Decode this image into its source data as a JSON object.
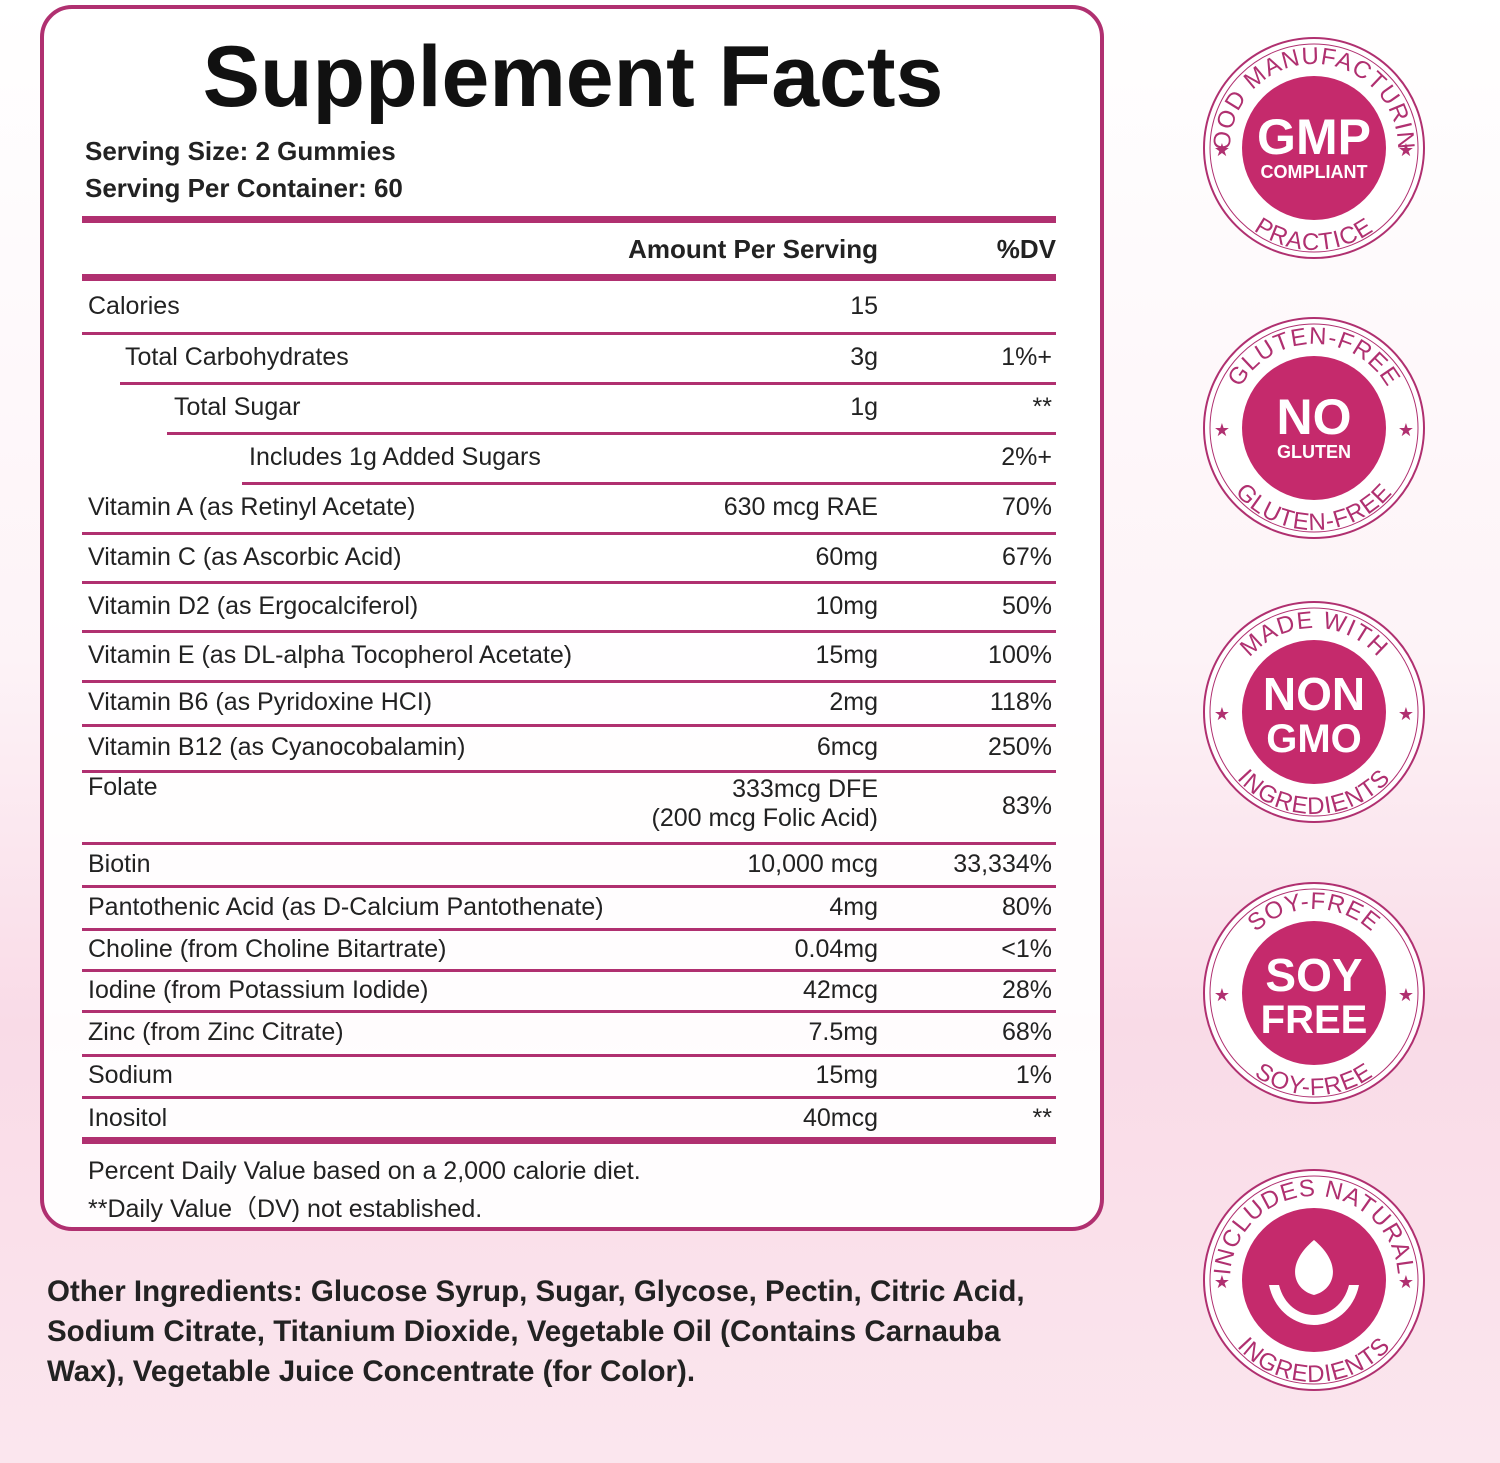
{
  "title": "Supplement Facts",
  "serving": [
    "Serving Size: 2 Gummies",
    "Serving Per Container: 60"
  ],
  "table": {
    "header": [
      "Amount Per Serving",
      "%DV"
    ],
    "rows": [
      [
        "Calories",
        "15",
        null
      ],
      [
        "Total Carbohydrates",
        "3g",
        "1%+"
      ],
      [
        "Total Sugar",
        "1g",
        "**"
      ],
      [
        "Includes 1g Added Sugars",
        null,
        "2%+"
      ],
      [
        "Vitamin A (as Retinyl Acetate)",
        "630 mcg RAE",
        "70%"
      ],
      [
        "Vitamin C (as Ascorbic Acid)",
        "60mg",
        "67%"
      ],
      [
        "Vitamin D2 (as Ergocalciferol)",
        "10mg",
        "50%"
      ],
      [
        "Vitamin E (as DL-alpha Tocopherol Acetate)",
        "15mg",
        "100%"
      ],
      [
        "Vitamin B6 (as Pyridoxine HCI)",
        "2mg",
        "118%"
      ],
      [
        "Vitamin B12 (as Cyanocobalamin)",
        "6mcg",
        "250%"
      ],
      [
        "Folate",
        [
          "333mcg DFE",
          "(200 mcg Folic Acid)"
        ],
        "83%"
      ],
      [
        "Biotin",
        "10,000 mcg",
        "33,334%"
      ],
      [
        "Pantothenic Acid (as D-Calcium Pantothenate)",
        "4mg",
        "80%"
      ],
      [
        "Choline (from Choline Bitartrate)",
        "0.04mg",
        "<1%"
      ],
      [
        "Iodine (from Potassium Iodide)",
        "42mcg",
        "28%"
      ],
      [
        "Zinc (from Zinc Citrate)",
        "7.5mg",
        "68%"
      ],
      [
        "Sodium",
        "15mg",
        "1%"
      ],
      [
        "Inositol",
        "40mcg",
        "**"
      ]
    ]
  },
  "footnotes": [
    "Percent Daily Value based on a 2,000 calorie diet.",
    "**Daily Value（DV) not established."
  ],
  "other_ingredients": "Other Ingredients: Glucose Syrup, Sugar, Glycose, Pectin, Citric Acid, Sodium Citrate, Titanium Dioxide, Vegetable Oil (Contains Carnauba Wax), Vegetable Juice Concentrate (for Color).",
  "badges": [
    {
      "top": "GOOD MANUFACTURING",
      "center": [
        "GMP",
        "COMPLIANT"
      ],
      "bottom": "PRACTICE"
    },
    {
      "top": "GLUTEN-FREE",
      "center": [
        "NO",
        "GLUTEN"
      ],
      "bottom": "GLUTEN-FREE"
    },
    {
      "top": "MADE WITH",
      "center": [
        "NON",
        "GMO"
      ],
      "bottom": "INGREDIENTS"
    },
    {
      "top": "SOY-FREE",
      "center": [
        "SOY",
        "FREE"
      ],
      "bottom": "SOY-FREE"
    },
    {
      "top": "INCLUDES NATURAL",
      "bottom": "INGREDIENTS"
    }
  ]
}
